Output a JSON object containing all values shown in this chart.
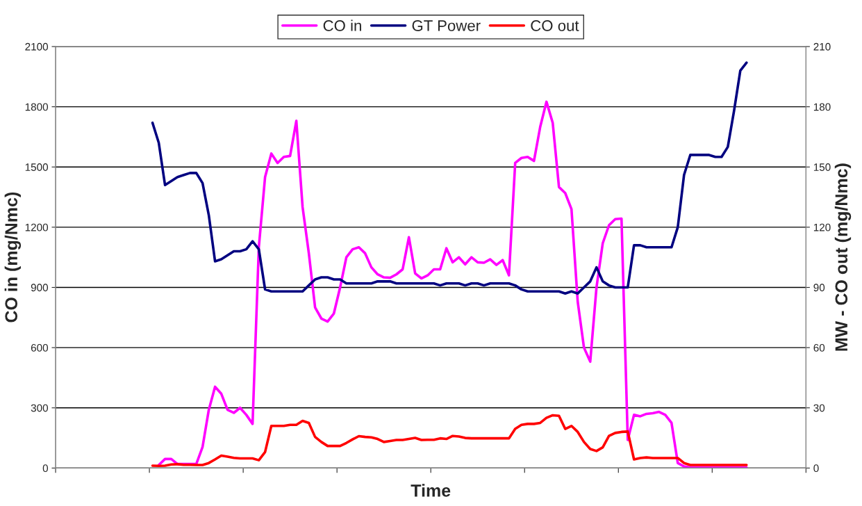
{
  "chart_data": {
    "type": "line",
    "xlabel": "Time",
    "ylabel": "CO in (mg/Nmc)",
    "y2label": "MW - CO out (mg/Nmc)",
    "categories": [
      null,
      null,
      null,
      null,
      null,
      null,
      null,
      null,
      null,
      null,
      null,
      null,
      null,
      null,
      null,
      null,
      null,
      null,
      null,
      null,
      null,
      null,
      null,
      null,
      null,
      null,
      null,
      null,
      null,
      null,
      null,
      null,
      null,
      null,
      null,
      null,
      null,
      null,
      null,
      null,
      null,
      null,
      null,
      null,
      null,
      null,
      null,
      null,
      null,
      null,
      null,
      null,
      null,
      null,
      null,
      null,
      null,
      null,
      null,
      null,
      null,
      null,
      null,
      null,
      null,
      null,
      null,
      null,
      null,
      null,
      null,
      null,
      null,
      null,
      null,
      null,
      null,
      null,
      null,
      null,
      null,
      null,
      null,
      null,
      null,
      null,
      null,
      null,
      null,
      null,
      null,
      null,
      null,
      null,
      null,
      null,
      null,
      null,
      null,
      null,
      null,
      null,
      null,
      null,
      null,
      null,
      null,
      null,
      null,
      null,
      null,
      null,
      null,
      null,
      null,
      null,
      null,
      null,
      null,
      null
    ],
    "series": [
      {
        "name": "CO in",
        "color": "#ff00ff",
        "values": [
          null,
          null,
          null,
          null,
          null,
          null,
          null,
          null,
          null,
          null,
          null,
          null,
          null,
          null,
          null,
          null,
          15,
          45,
          45,
          20,
          20,
          20,
          20,
          105,
          290,
          405,
          370,
          290,
          275,
          300,
          265,
          220,
          1100,
          1450,
          1567,
          1520,
          1550,
          1555,
          1730,
          1300,
          1070,
          800,
          745,
          730,
          770,
          900,
          1050,
          1090,
          1100,
          1070,
          1000,
          965,
          950,
          948,
          965,
          990,
          1150,
          970,
          945,
          960,
          990,
          990,
          1095,
          1025,
          1050,
          1015,
          1050,
          1025,
          1023,
          1040,
          1012,
          1036,
          960,
          1520,
          1545,
          1550,
          1530,
          1700,
          1825,
          1720,
          1400,
          1370,
          1290,
          828,
          600,
          530,
          900,
          1120,
          1210,
          1240,
          1243,
          140,
          265,
          258,
          270,
          273,
          280,
          265,
          225,
          25,
          8,
          3,
          3,
          3,
          3,
          3,
          3,
          3,
          3,
          3,
          3,
          null,
          null,
          null,
          null,
          null,
          null,
          null,
          null,
          null
        ]
      },
      {
        "name": "GT Power",
        "color": "#000080",
        "axis": "y2",
        "values": [
          null,
          null,
          null,
          null,
          null,
          null,
          null,
          null,
          null,
          null,
          null,
          null,
          null,
          null,
          null,
          172,
          162,
          141,
          143,
          145,
          146,
          147,
          147,
          142,
          126,
          103,
          104,
          106,
          108,
          108,
          109,
          113,
          109,
          89,
          88,
          88,
          88,
          88,
          88,
          88,
          91,
          94,
          95,
          95,
          94,
          94,
          92,
          92,
          92,
          92,
          92,
          93,
          93,
          93,
          92,
          92,
          92,
          92,
          92,
          92,
          92,
          91,
          92,
          92,
          92,
          91,
          92,
          92,
          91,
          92,
          92,
          92,
          92,
          91,
          89,
          88,
          88,
          88,
          88,
          88,
          88,
          87,
          88,
          87,
          90,
          93,
          100,
          93,
          91,
          90,
          90,
          90,
          111,
          111,
          110,
          110,
          110,
          110,
          110,
          120,
          146,
          156,
          156,
          156,
          156,
          155,
          155,
          160,
          178,
          198,
          202,
          null,
          null,
          null,
          null,
          null,
          null,
          null,
          null,
          null
        ]
      },
      {
        "name": "CO out",
        "color": "#ff0000",
        "axis": "y2",
        "values": [
          null,
          null,
          null,
          null,
          null,
          null,
          null,
          null,
          null,
          null,
          null,
          null,
          null,
          null,
          null,
          1.2,
          1.1,
          1.2,
          1.8,
          1.9,
          1.6,
          1.6,
          1.5,
          1.5,
          2.5,
          4.3,
          6.2,
          5.7,
          5.1,
          4.8,
          4.8,
          4.8,
          3.9,
          8,
          21,
          21,
          21,
          21.5,
          21.5,
          23.5,
          22.5,
          15.5,
          13,
          11,
          11,
          11,
          12.5,
          14.3,
          15.9,
          15.5,
          15.3,
          14.5,
          13,
          13.5,
          14,
          14,
          14.5,
          15,
          14,
          14.1,
          14.1,
          14.8,
          14.5,
          16,
          15.7,
          15,
          14.8,
          14.8,
          14.8,
          14.8,
          14.8,
          14.8,
          14.8,
          19.5,
          21.5,
          22,
          22,
          22.5,
          25,
          26.3,
          26,
          19.5,
          21,
          18,
          13,
          9.5,
          8.5,
          10.3,
          16,
          17.5,
          18,
          18.2,
          4.3,
          5,
          5.3,
          5,
          5,
          5,
          5,
          5,
          2.5,
          1.5,
          1.5,
          1.5,
          1.5,
          1.5,
          1.5,
          1.5,
          1.5,
          1.5,
          1.5,
          null,
          null,
          null,
          null,
          null,
          null,
          null,
          null,
          null
        ]
      }
    ],
    "ylim": [
      0,
      2100
    ],
    "yticks": [
      0,
      300,
      600,
      900,
      1200,
      1500,
      1800,
      2100
    ],
    "y2lim": [
      0,
      210
    ],
    "y2ticks": [
      0,
      30,
      60,
      90,
      120,
      150,
      180,
      210
    ],
    "grid": "y",
    "legend": "top",
    "marker": "none",
    "line_style": "solid"
  }
}
